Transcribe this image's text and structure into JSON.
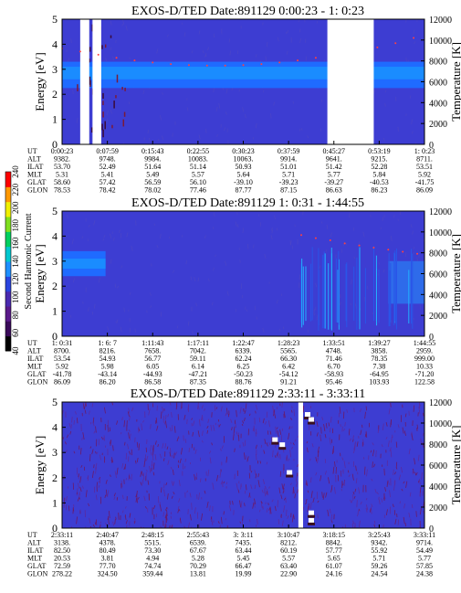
{
  "figure": {
    "colorbar": {
      "label": "Second Harmonic Current",
      "ticks": [
        "40",
        "60",
        "80",
        "100",
        "120",
        "140",
        "160",
        "180",
        "200",
        "220",
        "240"
      ],
      "colors": [
        "#000000",
        "#3a0a5a",
        "#5a1a8a",
        "#4a2ab0",
        "#2a44e0",
        "#1e90ff",
        "#00c8d0",
        "#00d060",
        "#80e020",
        "#f0f000",
        "#ff9900",
        "#ff0000"
      ]
    },
    "row_labels": [
      "UT",
      "ALT",
      "ILAT",
      "MLT",
      "GLAT",
      "GLON"
    ]
  },
  "chart_data": [
    {
      "type": "heatmap",
      "title": "EXOS-D/TED   Date:891129   0:00:23 - 1: 0:23",
      "ylabel": "Energy [eV]",
      "ylabel_right": "Temperature [K]",
      "ylim": [
        0,
        5
      ],
      "yticks": [
        "0",
        "1",
        "2",
        "3",
        "4",
        "5"
      ],
      "ylim_right": [
        0,
        12000
      ],
      "yticks_right": [
        "0",
        "2000",
        "4000",
        "6000",
        "8000",
        "10000",
        "12000"
      ],
      "band": {
        "low": 2.25,
        "high": 3.3,
        "core_low": 2.6,
        "core_high": 3.1
      },
      "gaps": [
        [
          0.05,
          0.075
        ],
        [
          0.084,
          0.108
        ],
        [
          0.732,
          0.86
        ]
      ],
      "temperature_points": [
        {
          "x": 0.0,
          "y": 9200
        },
        {
          "x": 0.05,
          "y": 8900
        },
        {
          "x": 0.1,
          "y": 8600
        },
        {
          "x": 0.15,
          "y": 8300
        },
        {
          "x": 0.2,
          "y": 8050
        },
        {
          "x": 0.25,
          "y": 7850
        },
        {
          "x": 0.3,
          "y": 7700
        },
        {
          "x": 0.35,
          "y": 7600
        },
        {
          "x": 0.4,
          "y": 7550
        },
        {
          "x": 0.45,
          "y": 7550
        },
        {
          "x": 0.5,
          "y": 7600
        },
        {
          "x": 0.55,
          "y": 7700
        },
        {
          "x": 0.6,
          "y": 7850
        },
        {
          "x": 0.65,
          "y": 8050
        },
        {
          "x": 0.7,
          "y": 8300
        },
        {
          "x": 0.87,
          "y": 9300
        },
        {
          "x": 0.92,
          "y": 9700
        },
        {
          "x": 0.97,
          "y": 10200
        }
      ],
      "orbit": {
        "UT": [
          "0:00:23",
          "0:07:59",
          "0:15:43",
          "0:22:55",
          "0:30:23",
          "0:37:59",
          "0:45:27",
          "0:53:19",
          "1: 0:23"
        ],
        "ALT": [
          "9382.",
          "9748.",
          "9984.",
          "10083.",
          "10063.",
          "9914.",
          "9641.",
          "9215.",
          "8711."
        ],
        "ILAT": [
          "53.70",
          "52.49",
          "51.64",
          "51.14",
          "50.93",
          "51.01",
          "51.42",
          "52.28",
          "53.51"
        ],
        "MLT": [
          "5.31",
          "5.41",
          "5.49",
          "5.57",
          "5.64",
          "5.71",
          "5.77",
          "5.84",
          "5.92"
        ],
        "GLAT": [
          "58.60",
          "57.42",
          "56.59",
          "56.10",
          "-39.10",
          "-39.23",
          "-39.27",
          "-40.53",
          "-41.75"
        ],
        "GLON": [
          "78.53",
          "78.42",
          "78.02",
          "77.46",
          "87.77",
          "87.15",
          "86.63",
          "86.23",
          "86.09"
        ]
      }
    },
    {
      "type": "heatmap",
      "title": "EXOS-D/TED   Date:891129   1: 0:31 - 1:44:55",
      "ylabel": "Energy [eV]",
      "ylabel_right": "Temperature [K]",
      "ylim": [
        0,
        5
      ],
      "yticks": [
        "0",
        "1",
        "2",
        "3",
        "4",
        "5"
      ],
      "ylim_right": [
        0,
        12000
      ],
      "yticks_right": [
        "0",
        "2000",
        "4000",
        "6000",
        "8000",
        "10000",
        "12000"
      ],
      "band": {
        "low": 2.4,
        "high": 3.4,
        "core_low": 2.7,
        "core_high": 3.1,
        "end_fraction": 0.12
      },
      "gaps": [],
      "temperature_points": [
        {
          "x": 0.66,
          "y": 9700
        },
        {
          "x": 0.7,
          "y": 9400
        },
        {
          "x": 0.74,
          "y": 9200
        },
        {
          "x": 0.78,
          "y": 8900
        },
        {
          "x": 0.82,
          "y": 8700
        },
        {
          "x": 0.86,
          "y": 8500
        },
        {
          "x": 0.9,
          "y": 8300
        },
        {
          "x": 0.94,
          "y": 8100
        },
        {
          "x": 0.98,
          "y": 7900
        }
      ],
      "orbit": {
        "UT": [
          "1: 0:31",
          "1: 6: 7",
          "1:11:43",
          "1:17:11",
          "1:22:47",
          "1:28:23",
          "1:33:51",
          "1:39:27",
          "1:44:55"
        ],
        "ALT": [
          "8700.",
          "8216.",
          "7658.",
          "7042.",
          "6339.",
          "5565.",
          "4748.",
          "3858.",
          "2959."
        ],
        "ILAT": [
          "53.54",
          "54.93",
          "56.77",
          "59.11",
          "62.24",
          "66.30",
          "71.46",
          "78.35",
          "999.00"
        ],
        "MLT": [
          "5.92",
          "5.98",
          "6.05",
          "6.14",
          "6.25",
          "6.42",
          "6.70",
          "7.38",
          "10.33"
        ],
        "GLAT": [
          "-41.78",
          "-43.14",
          "-44.93",
          "-47.21",
          "-50.23",
          "-54.12",
          "-58.93",
          "-64.95",
          "-71.20"
        ],
        "GLON": [
          "86.09",
          "86.20",
          "86.58",
          "87.35",
          "88.76",
          "91.21",
          "95.46",
          "103.93",
          "122.58"
        ]
      }
    },
    {
      "type": "heatmap",
      "title": "EXOS-D/TED   Date:891129   2:33:11 - 3:33:11",
      "ylabel": "Energy [eV]",
      "ylabel_right": "Temperature [K]",
      "ylim": [
        0,
        5
      ],
      "yticks": [
        "0",
        "1",
        "2",
        "3",
        "4",
        "5"
      ],
      "ylim_right": [
        0,
        12000
      ],
      "yticks_right": [
        "0",
        "2000",
        "4000",
        "6000",
        "8000",
        "10000",
        "12000"
      ],
      "band": null,
      "gaps": [
        [
          0.652,
          0.665
        ]
      ],
      "temperature_points": [],
      "orbit": {
        "UT": [
          "2:33:11",
          "2:40:47",
          "2:48:15",
          "2:55:43",
          "3: 3:11",
          "3:10:47",
          "3:18:15",
          "3:25:43",
          "3:33:11"
        ],
        "ALT": [
          "3138.",
          "4378.",
          "5515.",
          "6539.",
          "7435.",
          "8212.",
          "8842.",
          "9342.",
          "9714."
        ],
        "ILAT": [
          "82.50",
          "80.49",
          "73.30",
          "67.67",
          "63.44",
          "60.19",
          "57.77",
          "55.92",
          "54.49"
        ],
        "MLT": [
          "20.53",
          "3.81",
          "4.94",
          "5.28",
          "5.45",
          "5.57",
          "5.65",
          "5.71",
          "5.77"
        ],
        "GLAT": [
          "72.59",
          "77.70",
          "74.74",
          "70.29",
          "66.47",
          "63.40",
          "61.07",
          "59.26",
          "57.85"
        ],
        "GLON": [
          "278.22",
          "324.50",
          "359.44",
          "13.81",
          "19.99",
          "22.90",
          "24.16",
          "24.54",
          "24.38"
        ]
      }
    }
  ]
}
